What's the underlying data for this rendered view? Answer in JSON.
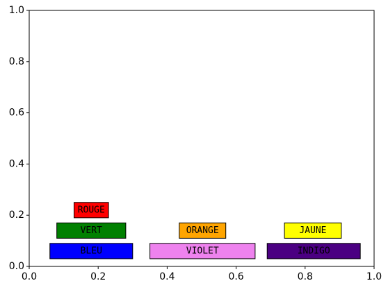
{
  "chart_data": {
    "type": "other",
    "title": "",
    "xlabel": "",
    "ylabel": "",
    "xlim": [
      0,
      1
    ],
    "ylim": [
      0,
      1
    ],
    "grid": false,
    "x_ticks": [
      "0.0",
      "0.2",
      "0.4",
      "0.6",
      "0.8",
      "1.0"
    ],
    "y_ticks": [
      "0.0",
      "0.2",
      "0.4",
      "0.6",
      "0.8",
      "1.0"
    ],
    "boxes": [
      {
        "label": "ROUGE",
        "fill": "#ff0000",
        "text_color": "#000000",
        "x": [
          0.13,
          0.23
        ],
        "y": [
          0.19,
          0.25
        ]
      },
      {
        "label": "VERT",
        "fill": "#008000",
        "text_color": "#000000",
        "x": [
          0.08,
          0.28
        ],
        "y": [
          0.11,
          0.17
        ]
      },
      {
        "label": "BLEU",
        "fill": "#0000ff",
        "text_color": "#000000",
        "x": [
          0.06,
          0.3
        ],
        "y": [
          0.03,
          0.09
        ]
      },
      {
        "label": "ORANGE",
        "fill": "#ffa500",
        "text_color": "#000000",
        "x": [
          0.435,
          0.57
        ],
        "y": [
          0.11,
          0.17
        ]
      },
      {
        "label": "VIOLET",
        "fill": "#ee82ee",
        "text_color": "#000000",
        "x": [
          0.35,
          0.655
        ],
        "y": [
          0.03,
          0.09
        ]
      },
      {
        "label": "JAUNE",
        "fill": "#ffff00",
        "text_color": "#000000",
        "x": [
          0.74,
          0.905
        ],
        "y": [
          0.11,
          0.17
        ]
      },
      {
        "label": "INDIGO",
        "fill": "#4b0082",
        "text_color": "#000000",
        "x": [
          0.69,
          0.96
        ],
        "y": [
          0.03,
          0.09
        ]
      }
    ]
  }
}
